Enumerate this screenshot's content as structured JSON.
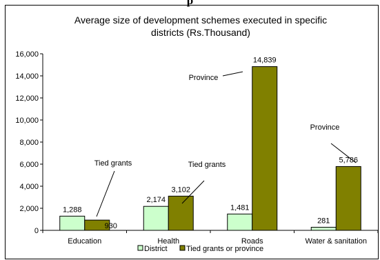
{
  "heading_fragment": "p",
  "chart_data": {
    "type": "bar",
    "title_lines": [
      "Average size of development schemes executed in specific",
      "districts (Rs.Thousand)"
    ],
    "categories": [
      "Education",
      "Health",
      "Roads",
      "Water & sanitation"
    ],
    "series": [
      {
        "name": "District",
        "values": [
          1288,
          2174,
          1481,
          281
        ],
        "color": "#ccffcc"
      },
      {
        "name": "Tied grants or province",
        "values": [
          930,
          3102,
          14839,
          5786
        ],
        "color": "#808000"
      }
    ],
    "data_labels": [
      [
        "1,288",
        "2,174",
        "1,481",
        "281"
      ],
      [
        "930",
        "3,102",
        "14,839",
        "5,786"
      ]
    ],
    "ylim": [
      0,
      16000
    ],
    "yticks": [
      0,
      2000,
      4000,
      6000,
      8000,
      10000,
      12000,
      14000,
      16000
    ],
    "ytick_labels": [
      "0",
      "2,000",
      "4,000",
      "6,000",
      "8,000",
      "10,000",
      "12,000",
      "14,000",
      "16,000"
    ],
    "annotations": [
      {
        "text": "Tied grants",
        "category": 0,
        "series": 1
      },
      {
        "text": "Tied grants",
        "category": 1,
        "series": 1
      },
      {
        "text": "Province",
        "category": 2,
        "series": 1
      },
      {
        "text": "Province",
        "category": 3,
        "series": 1
      }
    ],
    "legend_position": "bottom",
    "grid": false
  }
}
